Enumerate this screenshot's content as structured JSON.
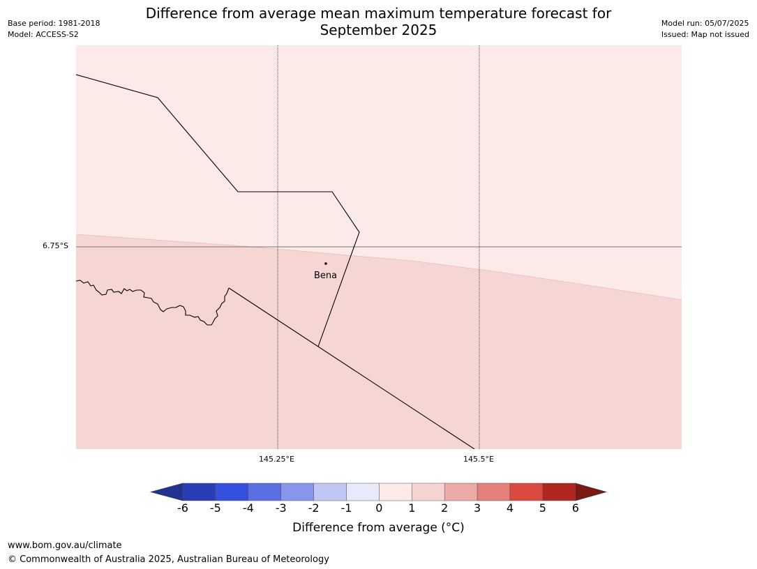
{
  "header": {
    "title": "Difference from average mean maximum temperature forecast for September 2025",
    "base_period": "Base period: 1981-2018",
    "model": "Model: ACCESS-S2",
    "model_run": "Model run: 05/07/2025",
    "issued": "Issued: Map not issued"
  },
  "map": {
    "lat_label": "6.75°S",
    "lon_labels": [
      "145.25°E",
      "145.5°E"
    ],
    "places": [
      {
        "name": "Bena"
      }
    ],
    "region_colors": {
      "zero_to_one": "#fbeae8",
      "one_to_two": "#f5d6d3"
    }
  },
  "colorbar": {
    "label": "Difference from average (°C)",
    "ticks": [
      "-6",
      "-5",
      "-4",
      "-3",
      "-2",
      "-1",
      "0",
      "1",
      "2",
      "3",
      "4",
      "5",
      "6"
    ],
    "colors": [
      "#233390",
      "#2a3db5",
      "#3450dc",
      "#5b6fe3",
      "#8796ea",
      "#bfc6f3",
      "#e8eafb",
      "#fbeae8",
      "#f5d3d0",
      "#ecaba6",
      "#e47f7a",
      "#da4a3e",
      "#ad2620",
      "#7a1a15"
    ]
  },
  "footer": {
    "url": "www.bom.gov.au/climate",
    "copyright": "© Commonwealth of Australia 2025, Australian Bureau of Meteorology"
  }
}
